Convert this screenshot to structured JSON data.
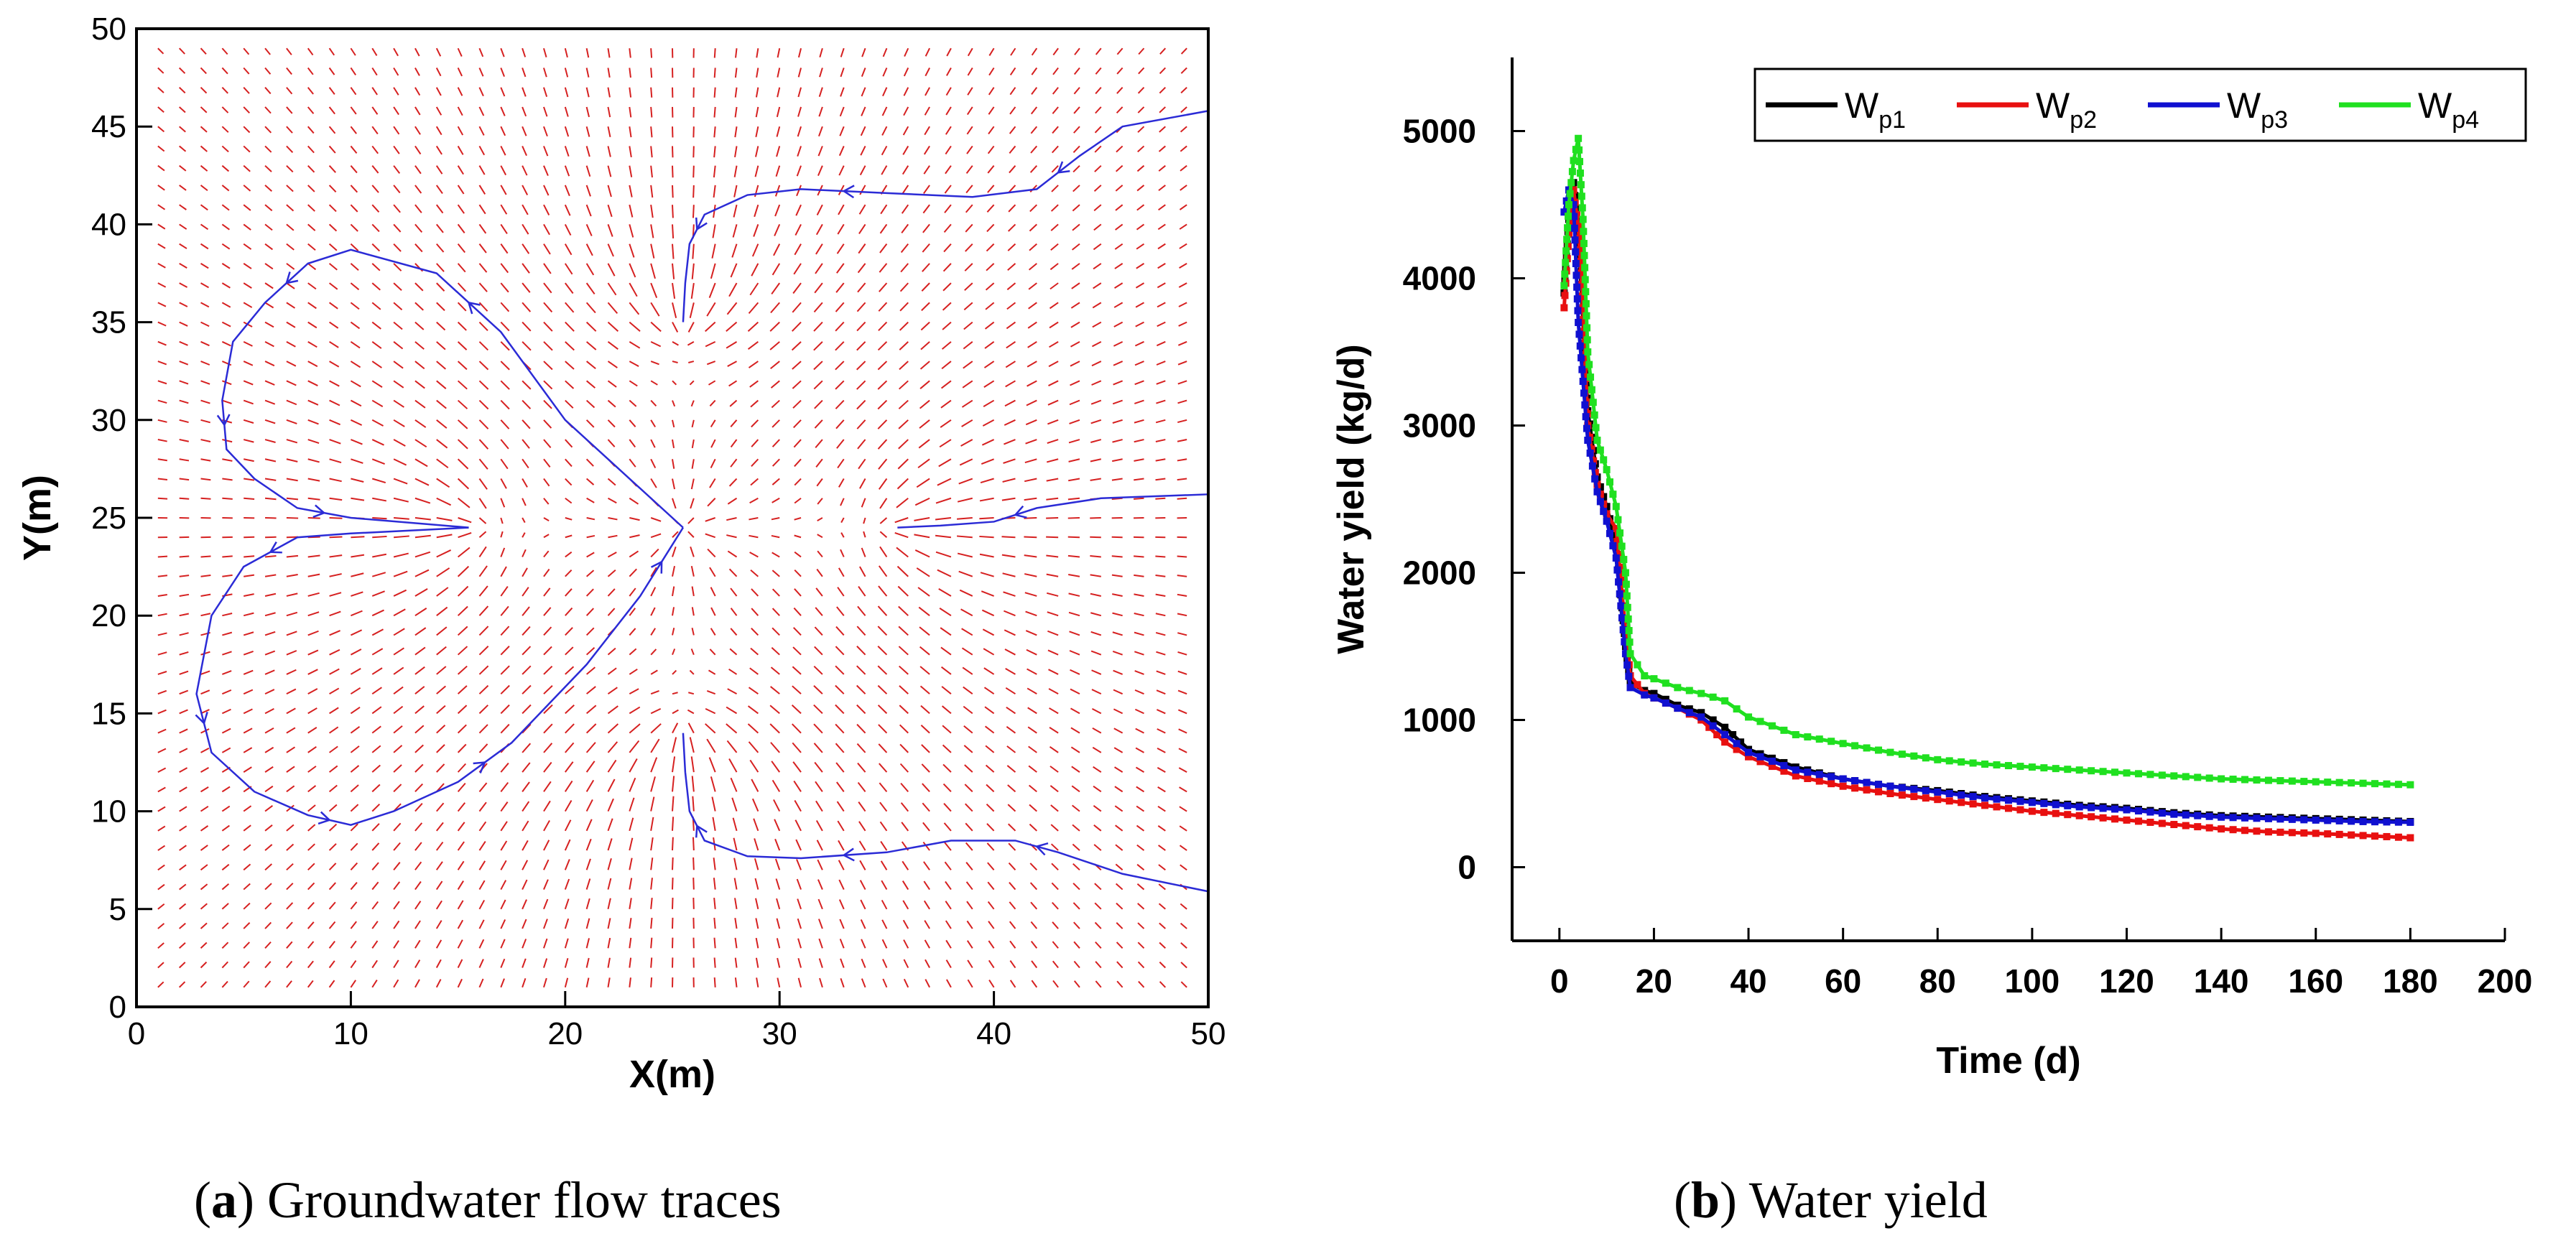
{
  "chart_data": [
    {
      "type": "vector-field",
      "panel_label": "a",
      "title": "Groundwater flow traces",
      "xlabel": "X(m)",
      "ylabel": "Y(m)",
      "xlim": [
        0,
        50
      ],
      "ylim": [
        0,
        50
      ],
      "xticks": [
        0,
        10,
        20,
        30,
        40,
        50
      ],
      "yticks": [
        0,
        5,
        10,
        15,
        20,
        25,
        30,
        35,
        40,
        45,
        50
      ],
      "wells": [
        {
          "x": 15.5,
          "y": 24.5,
          "kind": "sink"
        },
        {
          "x": 25.5,
          "y": 24.5,
          "kind": "sink"
        },
        {
          "x": 35.5,
          "y": 24.5,
          "kind": "sink"
        },
        {
          "x": 25.5,
          "y": 35.0,
          "kind": "sink"
        },
        {
          "x": 25.5,
          "y": 14.0,
          "kind": "sink"
        }
      ],
      "traces": [
        {
          "name": "upper-left-loop",
          "points": [
            [
              25.5,
              24.5
            ],
            [
              20,
              30
            ],
            [
              17,
              34.5
            ],
            [
              14,
              37.5
            ],
            [
              10,
              38.7
            ],
            [
              8,
              38
            ],
            [
              6,
              36
            ],
            [
              4.5,
              34
            ],
            [
              4,
              31
            ],
            [
              4.2,
              28.5
            ],
            [
              5.5,
              27
            ],
            [
              7.5,
              25.5
            ],
            [
              10,
              25
            ],
            [
              15.5,
              24.5
            ]
          ]
        },
        {
          "name": "lower-left-loop",
          "points": [
            [
              15.5,
              24.5
            ],
            [
              10,
              24.2
            ],
            [
              7.5,
              24
            ],
            [
              5,
              22.5
            ],
            [
              3.5,
              20
            ],
            [
              2.8,
              16
            ],
            [
              3.5,
              13
            ],
            [
              5.5,
              11
            ],
            [
              8,
              9.8
            ],
            [
              10,
              9.3
            ],
            [
              12,
              10
            ],
            [
              15,
              11.5
            ],
            [
              17.5,
              13.5
            ],
            [
              21,
              17.5
            ],
            [
              23.5,
              21
            ],
            [
              25.5,
              24.5
            ]
          ]
        },
        {
          "name": "upper-right",
          "points": [
            [
              50,
              45.8
            ],
            [
              46,
              45
            ],
            [
              44,
              43.5
            ],
            [
              42,
              41.8
            ],
            [
              39,
              41.4
            ],
            [
              35,
              41.6
            ],
            [
              31,
              41.8
            ],
            [
              28.5,
              41.5
            ],
            [
              26.5,
              40.5
            ],
            [
              25.8,
              39
            ],
            [
              25.6,
              37
            ],
            [
              25.5,
              35
            ]
          ]
        },
        {
          "name": "middle-right",
          "points": [
            [
              50,
              26.2
            ],
            [
              45,
              26
            ],
            [
              42,
              25.5
            ],
            [
              40,
              24.8
            ],
            [
              37.5,
              24.6
            ],
            [
              35.5,
              24.5
            ]
          ]
        },
        {
          "name": "lower-right",
          "points": [
            [
              50,
              5.9
            ],
            [
              46,
              6.8
            ],
            [
              43,
              7.9
            ],
            [
              41,
              8.5
            ],
            [
              38,
              8.5
            ],
            [
              35,
              7.9
            ],
            [
              31,
              7.6
            ],
            [
              28.5,
              7.7
            ],
            [
              26.5,
              8.5
            ],
            [
              25.8,
              10
            ],
            [
              25.6,
              12
            ],
            [
              25.5,
              14
            ]
          ]
        }
      ]
    },
    {
      "type": "line",
      "panel_label": "b",
      "title": "Water yield",
      "xlabel": "Time (d)",
      "ylabel": "Water yield (kg/d)",
      "xlim": [
        -10,
        200
      ],
      "ylim": [
        -500,
        5500
      ],
      "xticks": [
        0,
        20,
        40,
        60,
        80,
        100,
        120,
        140,
        160,
        180,
        200
      ],
      "yticks": [
        0,
        1000,
        2000,
        3000,
        4000,
        5000
      ],
      "legend_position": "top-right",
      "series": [
        {
          "name": "W",
          "sub": "p1",
          "color": "#000000",
          "x": [
            1,
            2,
            3,
            4,
            5,
            6,
            8,
            10,
            12,
            14,
            15,
            18,
            20,
            25,
            30,
            35,
            40,
            50,
            60,
            70,
            80,
            90,
            100,
            110,
            120,
            130,
            140,
            150,
            160,
            170,
            180
          ],
          "y": [
            3900,
            4400,
            4650,
            4300,
            3700,
            3100,
            2650,
            2450,
            2200,
            1500,
            1250,
            1200,
            1180,
            1100,
            1050,
            950,
            800,
            680,
            600,
            550,
            520,
            480,
            450,
            420,
            400,
            370,
            350,
            340,
            330,
            320,
            310
          ]
        },
        {
          "name": "W",
          "sub": "p2",
          "color": "#e81010",
          "x": [
            1,
            2,
            3,
            4,
            5,
            6,
            8,
            10,
            12,
            14,
            15,
            18,
            20,
            25,
            30,
            35,
            40,
            50,
            60,
            70,
            80,
            90,
            100,
            110,
            120,
            130,
            140,
            150,
            160,
            170,
            180
          ],
          "y": [
            3800,
            4300,
            4600,
            4350,
            3800,
            3000,
            2600,
            2400,
            2300,
            1600,
            1300,
            1180,
            1150,
            1080,
            1000,
            850,
            750,
            620,
            550,
            500,
            460,
            420,
            380,
            350,
            320,
            290,
            260,
            240,
            230,
            215,
            200
          ]
        },
        {
          "name": "W",
          "sub": "p3",
          "color": "#1010d0",
          "x": [
            1,
            2,
            3,
            4,
            5,
            6,
            8,
            10,
            12,
            14,
            15,
            18,
            20,
            25,
            30,
            35,
            40,
            50,
            60,
            70,
            80,
            90,
            100,
            110,
            120,
            130,
            140,
            150,
            160,
            170,
            180
          ],
          "y": [
            4450,
            4600,
            4500,
            3700,
            3300,
            2900,
            2550,
            2350,
            2100,
            1450,
            1220,
            1170,
            1150,
            1080,
            1020,
            900,
            780,
            660,
            600,
            550,
            510,
            470,
            440,
            410,
            390,
            360,
            340,
            330,
            320,
            310,
            305
          ]
        },
        {
          "name": "W",
          "sub": "p4",
          "color": "#20e020",
          "x": [
            1,
            2,
            3,
            4,
            5,
            6,
            8,
            10,
            12,
            14,
            15,
            18,
            20,
            25,
            30,
            35,
            40,
            50,
            60,
            70,
            80,
            90,
            100,
            110,
            120,
            130,
            140,
            150,
            160,
            170,
            180
          ],
          "y": [
            3950,
            4500,
            4800,
            4950,
            4400,
            3500,
            2900,
            2700,
            2450,
            2000,
            1450,
            1300,
            1280,
            1220,
            1180,
            1130,
            1020,
            900,
            840,
            780,
            730,
            700,
            680,
            660,
            640,
            620,
            600,
            590,
            580,
            570,
            560
          ]
        }
      ]
    }
  ],
  "captions": {
    "a": {
      "label": "a",
      "text": "Groundwater flow traces"
    },
    "b": {
      "label": "b",
      "text": "Water yield"
    }
  }
}
